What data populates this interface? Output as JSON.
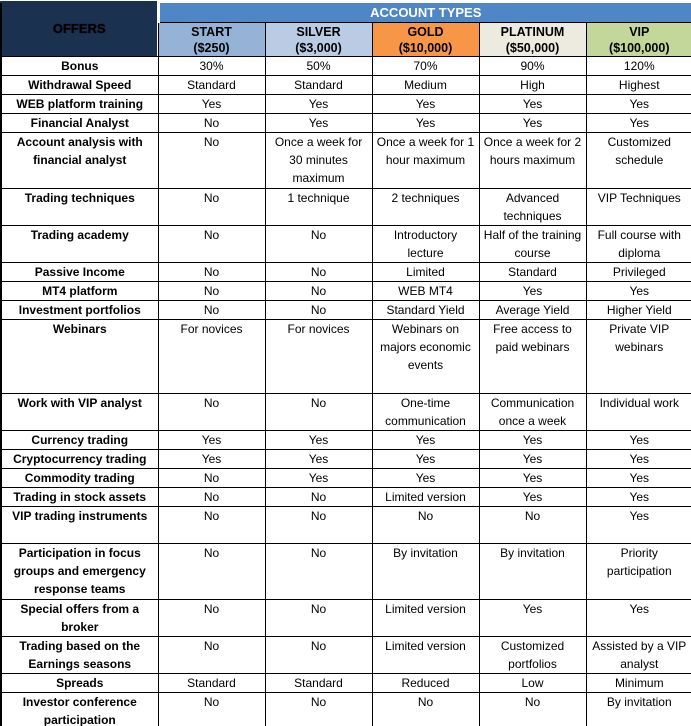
{
  "table": {
    "corner_label": "OFFERS",
    "banner_label": "ACCOUNT TYPES",
    "columns": [
      {
        "name": "START",
        "deposit": "($250)",
        "color": "#95B3D7"
      },
      {
        "name": "SILVER",
        "deposit": "($3,000)",
        "color": "#B9CCE4"
      },
      {
        "name": "GOLD",
        "deposit": "($10,000)",
        "color": "#F79646"
      },
      {
        "name": "PLATINUM",
        "deposit": "($50,000)",
        "color": "#EDEBE0"
      },
      {
        "name": "VIP",
        "deposit": "($100,000)",
        "color": "#C4D79B"
      }
    ],
    "rows": [
      {
        "label": "Bonus",
        "values": [
          "30%",
          "50%",
          "70%",
          "90%",
          "120%"
        ]
      },
      {
        "label": "Withdrawal Speed",
        "values": [
          "Standard",
          "Standard",
          "Medium",
          "High",
          "Highest"
        ]
      },
      {
        "label": "WEB platform training",
        "values": [
          "Yes",
          "Yes",
          "Yes",
          "Yes",
          "Yes"
        ]
      },
      {
        "label": "Financial Analyst",
        "values": [
          "No",
          "Yes",
          "Yes",
          "Yes",
          "Yes"
        ]
      },
      {
        "label": "Account analysis with financial analyst",
        "values": [
          "No",
          "Once a week for 30 minutes maximum",
          "Once a week for 1 hour maximum",
          "Once a week for 2 hours maximum",
          "Customized schedule"
        ]
      },
      {
        "label": "Trading techniques",
        "values": [
          "No",
          "1 technique",
          "2 techniques",
          "Advanced techniques",
          "VIP Techniques"
        ]
      },
      {
        "label": "Trading academy",
        "values": [
          "No",
          "No",
          "Introductory lecture",
          "Half of the training course",
          "Full course with diploma"
        ]
      },
      {
        "label": "Passive Income",
        "values": [
          "No",
          "No",
          "Limited",
          "Standard",
          "Privileged"
        ]
      },
      {
        "label": "MT4 platform",
        "values": [
          "No",
          "No",
          "WEB MT4",
          "Yes",
          "Yes"
        ]
      },
      {
        "label": "Investment portfolios",
        "values": [
          "No",
          "No",
          "Standard Yield",
          "Average Yield",
          "Higher Yield"
        ]
      },
      {
        "label": "Webinars",
        "values": [
          "For novices",
          "For novices",
          "Webinars on majors economic events",
          "Free access to paid webinars",
          "Private VIP webinars"
        ]
      },
      {
        "label": "Work with VIP analyst",
        "values": [
          "No",
          "No",
          "One-time communication",
          "Communication once a week",
          "Individual work"
        ]
      },
      {
        "label": "Currency trading",
        "values": [
          "Yes",
          "Yes",
          "Yes",
          "Yes",
          "Yes"
        ]
      },
      {
        "label": "Cryptocurrency trading",
        "values": [
          "Yes",
          "Yes",
          "Yes",
          "Yes",
          "Yes"
        ]
      },
      {
        "label": "Commodity trading",
        "values": [
          "No",
          "Yes",
          "Yes",
          "Yes",
          "Yes"
        ]
      },
      {
        "label": "Trading in stock assets",
        "values": [
          "No",
          "No",
          "Limited version",
          "Yes",
          "Yes"
        ]
      },
      {
        "label": "VIP trading instruments",
        "values": [
          "No",
          "No",
          "No",
          "No",
          "Yes"
        ]
      },
      {
        "label": "Participation in focus groups and emergency response teams",
        "values": [
          "No",
          "No",
          "By invitation",
          "By invitation",
          "Priority participation"
        ]
      },
      {
        "label": "Special offers from a broker",
        "values": [
          "No",
          "No",
          "Limited version",
          "Yes",
          "Yes"
        ]
      },
      {
        "label": "Trading based on the Earnings seasons",
        "values": [
          "No",
          "No",
          "Limited version",
          "Customized portfolios",
          "Assisted by a VIP analyst"
        ]
      },
      {
        "label": "Spreads",
        "values": [
          "Standard",
          "Standard",
          "Reduced",
          "Low",
          "Minimum"
        ]
      },
      {
        "label": "Investor conference participation",
        "values": [
          "No",
          "No",
          "No",
          "No",
          "By invitation"
        ]
      }
    ]
  },
  "colors": {
    "offers_bg": "#1B3150",
    "banner_bg": "#4E86C6",
    "banner_text": "#FFFFFF",
    "grid_border": "#000000",
    "body_bg": "#FFFFFF",
    "start_bg": "#95B3D7",
    "silver_bg": "#B9CCE4",
    "gold_bg": "#F79646",
    "platinum_bg": "#EDEBE0",
    "vip_bg": "#C4D79B"
  }
}
